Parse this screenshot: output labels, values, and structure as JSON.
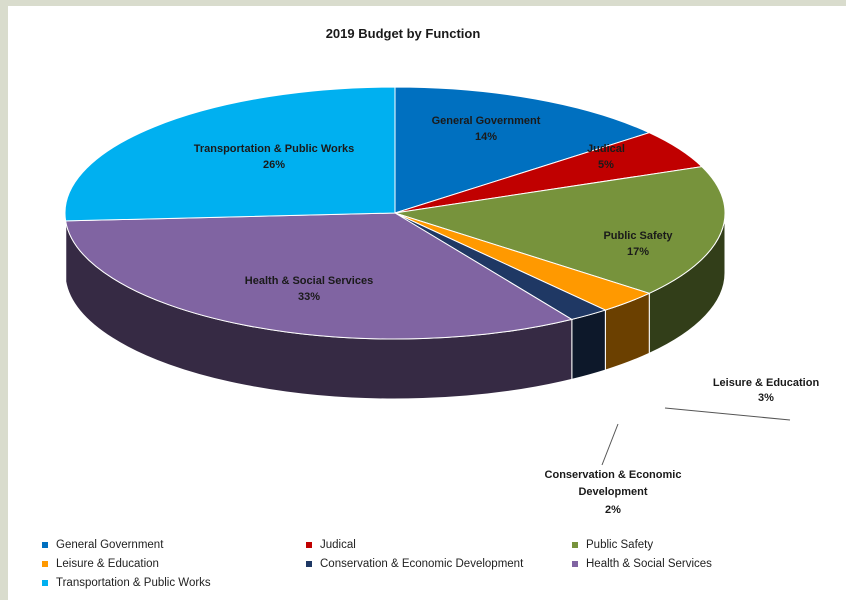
{
  "chart_data": {
    "type": "pie",
    "title": "2019 Budget by Function",
    "slices": [
      {
        "name": "General Government",
        "value": 14,
        "label": "14%",
        "color": "#0070c0"
      },
      {
        "name": "Judical",
        "value": 5,
        "label": "5%",
        "color": "#c00000"
      },
      {
        "name": "Public Safety",
        "value": 17,
        "label": "17%",
        "color": "#77933c"
      },
      {
        "name": "Leisure & Education",
        "value": 3,
        "label": "3%",
        "color": "#ff9900"
      },
      {
        "name": "Conservation & Economic Development",
        "value": 2,
        "label": "2%",
        "color": "#1f3864"
      },
      {
        "name": "Health & Social Services",
        "value": 33,
        "label": "33%",
        "color": "#8064a2"
      },
      {
        "name": "Transportation & Public Works",
        "value": 26,
        "label": "26%",
        "color": "#00b0f0"
      }
    ],
    "style": "3d",
    "legend": "bottom"
  }
}
